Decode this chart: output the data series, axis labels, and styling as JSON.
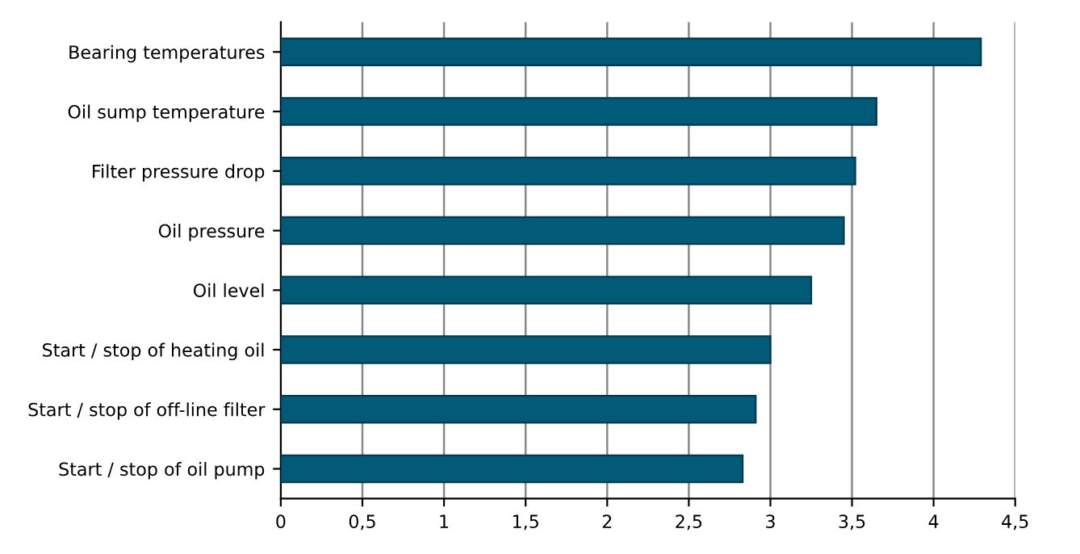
{
  "chart_data": {
    "type": "bar",
    "orientation": "horizontal",
    "categories": [
      "Bearing temperatures",
      "Oil sump temperature",
      "Filter pressure drop",
      "Oil pressure",
      "Oil level",
      "Start / stop of heating oil",
      "Start / stop of off-line filter",
      "Start / stop of oil pump"
    ],
    "values": [
      4.29,
      3.65,
      3.52,
      3.45,
      3.25,
      3.0,
      2.91,
      2.83
    ],
    "color": "#005a78",
    "xlim": [
      0,
      4.5
    ],
    "xticks": [
      0,
      {
        "value": 0.5,
        "label": "0,5"
      },
      1,
      {
        "value": 1.5,
        "label": "1,5"
      },
      2,
      {
        "value": 2.5,
        "label": "2,5"
      },
      3,
      {
        "value": 3.5,
        "label": "3,5"
      },
      4,
      {
        "value": 4.5,
        "label": "4,5"
      }
    ],
    "grid": "x",
    "legend": false
  }
}
